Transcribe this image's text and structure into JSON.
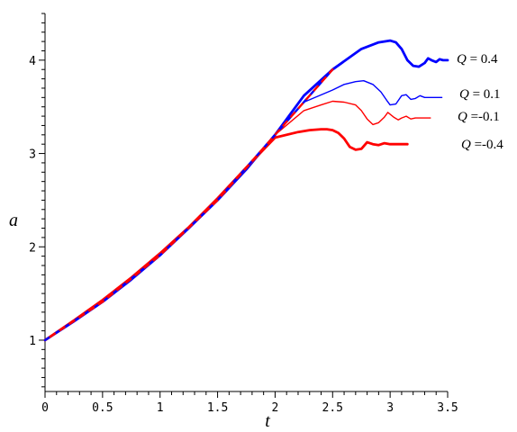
{
  "chart_data": {
    "type": "line",
    "title": "",
    "xlabel": "t",
    "ylabel": "a",
    "xlim": [
      0,
      3.5
    ],
    "ylim": [
      0.45,
      4.5
    ],
    "grid": false,
    "legend": "inline labels at right",
    "x_ticks": [
      "0",
      "0.5",
      "1",
      "1.5",
      "2",
      "2.5",
      "3",
      "3.5"
    ],
    "x_tick_values": [
      0,
      0.5,
      1,
      1.5,
      2,
      2.5,
      3,
      3.5
    ],
    "y_ticks": [
      "1",
      "2",
      "3",
      "4"
    ],
    "y_tick_values": [
      1,
      2,
      3,
      4
    ],
    "series": [
      {
        "name": "Q = 0.4",
        "label_q": "Q",
        "label_rest": " = 0.4",
        "color": "#0000ff",
        "style": "thick",
        "x": [
          0,
          0.25,
          0.5,
          0.75,
          1,
          1.25,
          1.5,
          1.75,
          2,
          2.25,
          2.5,
          2.75,
          2.9,
          3.0,
          3.05,
          3.1,
          3.15,
          3.2,
          3.25,
          3.3,
          3.33,
          3.36,
          3.4,
          3.43,
          3.46,
          3.5
        ],
        "y": [
          1,
          1.2,
          1.41,
          1.65,
          1.91,
          2.2,
          2.5,
          2.83,
          3.2,
          3.62,
          3.9,
          4.12,
          4.19,
          4.21,
          4.19,
          4.12,
          4.0,
          3.94,
          3.93,
          3.97,
          4.02,
          4.0,
          3.98,
          4.01,
          4.0,
          4.0
        ]
      },
      {
        "name": "Q = 0.1",
        "label_q": "Q",
        "label_rest": " = 0.1",
        "color": "#0000ff",
        "style": "thin",
        "x": [
          0,
          0.25,
          0.5,
          0.75,
          1,
          1.25,
          1.5,
          1.75,
          2,
          2.25,
          2.5,
          2.6,
          2.7,
          2.77,
          2.85,
          2.92,
          2.97,
          3.0,
          3.05,
          3.1,
          3.14,
          3.18,
          3.22,
          3.26,
          3.3,
          3.35,
          3.4,
          3.45
        ],
        "y": [
          1,
          1.2,
          1.42,
          1.66,
          1.92,
          2.2,
          2.5,
          2.83,
          3.2,
          3.55,
          3.68,
          3.74,
          3.77,
          3.78,
          3.74,
          3.66,
          3.57,
          3.52,
          3.53,
          3.62,
          3.63,
          3.58,
          3.59,
          3.62,
          3.6,
          3.6,
          3.6,
          3.6
        ]
      },
      {
        "name": "Q =-0.1",
        "label_q": "Q",
        "label_rest": " =-0.1",
        "color": "#ff0000",
        "style": "thin",
        "x": [
          0,
          0.25,
          0.5,
          0.75,
          1,
          1.25,
          1.5,
          1.75,
          2,
          2.25,
          2.4,
          2.5,
          2.6,
          2.7,
          2.75,
          2.8,
          2.85,
          2.9,
          2.95,
          2.98,
          3.03,
          3.07,
          3.1,
          3.14,
          3.18,
          3.22,
          3.26,
          3.3,
          3.35
        ],
        "y": [
          1,
          1.2,
          1.42,
          1.66,
          1.92,
          2.2,
          2.5,
          2.84,
          3.2,
          3.46,
          3.52,
          3.56,
          3.55,
          3.52,
          3.46,
          3.37,
          3.31,
          3.33,
          3.39,
          3.44,
          3.39,
          3.36,
          3.38,
          3.4,
          3.37,
          3.38,
          3.38,
          3.38,
          3.38
        ]
      },
      {
        "name": "Q =-0.4",
        "label_q": "Q",
        "label_rest": " =-0.4",
        "color": "#ff0000",
        "style": "thick",
        "x": [
          0,
          0.25,
          0.5,
          0.75,
          1,
          1.25,
          1.5,
          1.75,
          2,
          2.2,
          2.3,
          2.4,
          2.45,
          2.5,
          2.55,
          2.6,
          2.65,
          2.7,
          2.75,
          2.8,
          2.85,
          2.9,
          2.95,
          3.0,
          3.05,
          3.1,
          3.15
        ],
        "y": [
          1,
          1.21,
          1.43,
          1.67,
          1.93,
          2.21,
          2.52,
          2.85,
          3.17,
          3.23,
          3.25,
          3.26,
          3.26,
          3.25,
          3.22,
          3.16,
          3.07,
          3.04,
          3.05,
          3.12,
          3.1,
          3.09,
          3.11,
          3.1,
          3.1,
          3.1,
          3.1
        ]
      }
    ],
    "reference_line": {
      "color": "#0000ff",
      "style": "dashed",
      "x": [
        0,
        0.5,
        1,
        1.5,
        2,
        2.5
      ],
      "y": [
        1,
        1.41,
        1.91,
        2.5,
        3.2,
        3.9
      ]
    }
  }
}
